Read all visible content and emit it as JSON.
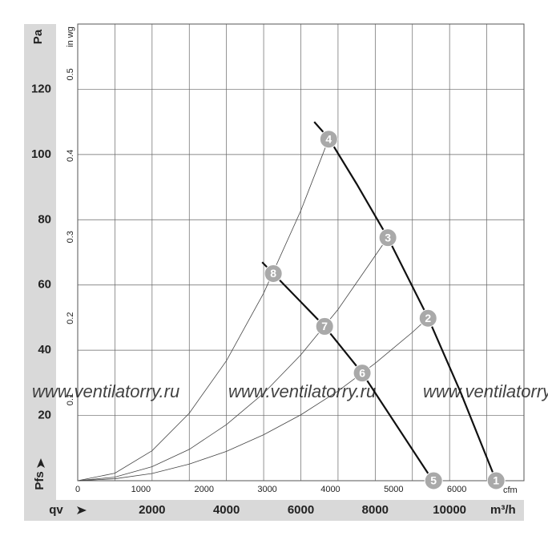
{
  "chart_data": {
    "type": "line",
    "y_label": "Pa",
    "y2_label": "in wg",
    "x_label": "m³/h",
    "x2_label": "cfm",
    "x_symbol": "qv",
    "y_symbol": "Pfs",
    "watermark": "www.ventilatorry.ru",
    "xlim": [
      0,
      12000
    ],
    "xticks": [
      2000,
      4000,
      6000,
      8000,
      10000
    ],
    "xgrid": [
      1000,
      2000,
      3000,
      4000,
      5000,
      6000,
      7000,
      8000,
      9000,
      10000,
      11000,
      12000
    ],
    "x2lim": [
      0,
      7063
    ],
    "x2ticks": [
      0,
      1000,
      2000,
      3000,
      4000,
      5000,
      6000
    ],
    "ylim": [
      0,
      140
    ],
    "yticks": [
      20,
      40,
      60,
      80,
      100,
      120
    ],
    "y2lim": [
      0,
      0.562
    ],
    "y2ticks": [
      0.1,
      0.2,
      0.3,
      0.4,
      0.5
    ],
    "grid": true,
    "series": [
      {
        "color": "#111111",
        "width": 2.2,
        "x": [
          6360,
          6750,
          7500,
          8340,
          9420,
          10300,
          11250
        ],
        "values": [
          110,
          105,
          91,
          74.5,
          50,
          27,
          0
        ]
      },
      {
        "color": "#111111",
        "width": 2.2,
        "x": [
          4960,
          5260,
          6640,
          7650,
          9550
        ],
        "values": [
          67,
          63.5,
          47.3,
          33,
          0
        ]
      },
      {
        "color": "#444444",
        "width": 0.8,
        "x": [
          0,
          1000,
          2000,
          3000,
          4000,
          5000,
          6000,
          6750
        ],
        "values": [
          0,
          2.3,
          9.2,
          20.7,
          36.8,
          57.5,
          82.8,
          104.8
        ]
      },
      {
        "color": "#444444",
        "width": 0.8,
        "x": [
          0,
          1000,
          2000,
          3000,
          4000,
          5000,
          6000,
          7000,
          8340
        ],
        "values": [
          0,
          1.1,
          4.3,
          9.6,
          17.2,
          26.8,
          38.6,
          52.5,
          74.6
        ]
      },
      {
        "color": "#444444",
        "width": 0.8,
        "x": [
          0,
          1000,
          2000,
          3000,
          4000,
          5000,
          6000,
          7000,
          8000,
          9000,
          9420
        ],
        "values": [
          0,
          0.6,
          2.2,
          5.1,
          9.0,
          14.1,
          20.2,
          27.5,
          36.0,
          45.5,
          49.9
        ]
      }
    ],
    "points": [
      {
        "label": "1",
        "x": 11250,
        "y": 0
      },
      {
        "label": "2",
        "x": 9420,
        "y": 49.8
      },
      {
        "label": "3",
        "x": 8340,
        "y": 74.5
      },
      {
        "label": "4",
        "x": 6750,
        "y": 104.7
      },
      {
        "label": "5",
        "x": 9570,
        "y": 0
      },
      {
        "label": "6",
        "x": 7650,
        "y": 33
      },
      {
        "label": "7",
        "x": 6640,
        "y": 47.3
      },
      {
        "label": "8",
        "x": 5260,
        "y": 63.5
      }
    ],
    "point_color": "#a9a9a9"
  }
}
